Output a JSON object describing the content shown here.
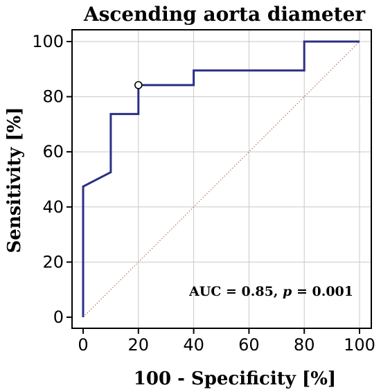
{
  "chart_data": {
    "type": "line",
    "title": "Ascending aorta diameter",
    "xlabel": "100 - Specificity [%]",
    "ylabel": "Sensitivity [%]",
    "xlim": [
      0,
      100
    ],
    "ylim": [
      0,
      100
    ],
    "xticks": [
      "0",
      "20",
      "40",
      "60",
      "80",
      "100"
    ],
    "yticks": [
      "0",
      "20",
      "40",
      "60",
      "80",
      "100"
    ],
    "grid": true,
    "series": [
      {
        "color": "#2b2f85",
        "x": [
          0,
          0,
          10,
          10,
          20,
          20,
          40,
          40,
          80,
          80,
          100
        ],
        "y": [
          0,
          47.4,
          52.6,
          73.7,
          73.7,
          84.2,
          84.2,
          89.5,
          89.5,
          100,
          100
        ]
      }
    ],
    "reference_line": {
      "x": [
        0,
        100
      ],
      "y": [
        0,
        100
      ],
      "color": "#b05a4a"
    },
    "highlight_point": {
      "x": 20,
      "y": 84.2
    },
    "annotation": {
      "prefix": "AUC = 0.85, ",
      "italic": "p",
      "suffix": " = 0.001"
    }
  }
}
